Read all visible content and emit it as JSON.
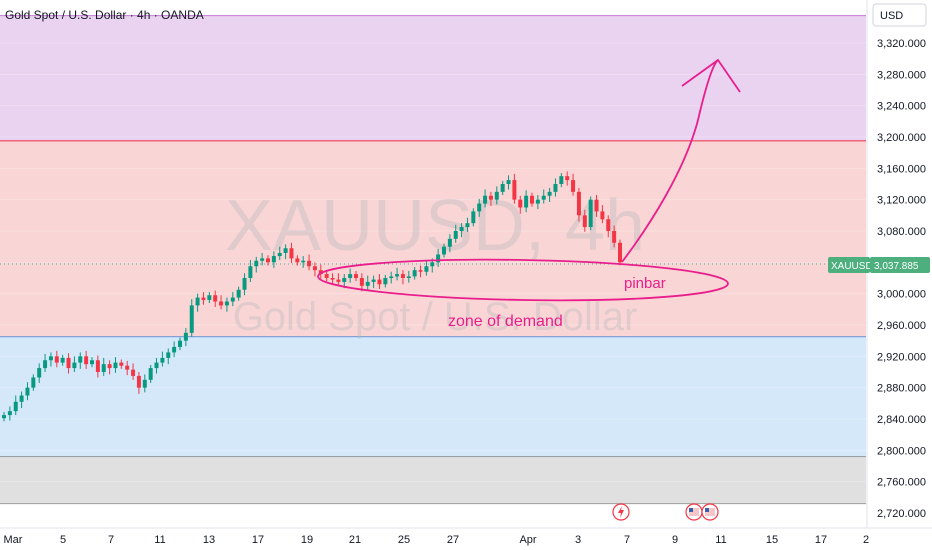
{
  "header": {
    "title": "Gold Spot / U.S. Dollar · 4h · OANDA"
  },
  "currency_button": "USD",
  "watermark": {
    "symbol": "XAUUSD, 4h",
    "name": "Gold Spot / U.S. Dollar"
  },
  "price_badge": {
    "symbol": "XAUUSD",
    "value": "3,037.885"
  },
  "annotations": {
    "zone_label": "zone of demand",
    "pinbar_label": "pinbar"
  },
  "colors": {
    "up": "#089981",
    "down": "#f23645",
    "purple_zone": "#ead3f0",
    "red_zone": "#f9d6d5",
    "blue_zone": "#d5e8fa",
    "gray_zone": "#e0e0e0",
    "annotation": "#e91e8c",
    "badge": "#4caf7d"
  },
  "event_icons": [
    "flash-icon",
    "us-flag-icon",
    "us-flag-icon"
  ],
  "chart_data": {
    "type": "candlestick",
    "ylim": [
      2700,
      3355
    ],
    "y_ticks": [
      2720,
      2760,
      2800,
      2840,
      2880,
      2920,
      2960,
      3000,
      3040,
      3080,
      3120,
      3160,
      3200,
      3240,
      3280,
      3320
    ],
    "y_tick_labels": [
      "2,720.000",
      "2,760.000",
      "2,800.000",
      "2,840.000",
      "2,880.000",
      "2,920.000",
      "2,960.000",
      "3,000.000",
      "3,040.000",
      "3,080.000",
      "3,120.000",
      "3,160.000",
      "3,200.000",
      "3,240.000",
      "3,280.000",
      "3,320.000"
    ],
    "x_labels": [
      "Mar",
      "5",
      "7",
      "11",
      "13",
      "17",
      "19",
      "21",
      "25",
      "27",
      "Apr",
      "3",
      "7",
      "9",
      "11",
      "15",
      "17",
      "2"
    ],
    "zones": [
      {
        "name": "supply-zone",
        "from": 3195,
        "to": 3355
      },
      {
        "name": "mid-zone",
        "from": 2945,
        "to": 3195
      },
      {
        "name": "demand-zone",
        "from": 2792,
        "to": 2945
      },
      {
        "name": "lower-zone",
        "from": 2732,
        "to": 2792
      }
    ],
    "current_price": 3037.885,
    "close_path": [
      2845,
      2850,
      2862,
      2870,
      2880,
      2893,
      2905,
      2915,
      2920,
      2912,
      2918,
      2905,
      2912,
      2920,
      2910,
      2915,
      2900,
      2910,
      2905,
      2912,
      2908,
      2903,
      2895,
      2880,
      2890,
      2905,
      2912,
      2918,
      2925,
      2932,
      2940,
      2950,
      2985,
      2995,
      2992,
      2998,
      2990,
      2985,
      2990,
      2995,
      3005,
      3020,
      3035,
      3042,
      3045,
      3040,
      3048,
      3052,
      3058,
      3045,
      3040,
      3042,
      3035,
      3030,
      3025,
      3020,
      3018,
      3015,
      3020,
      3025,
      3020,
      3010,
      3015,
      3018,
      3012,
      3020,
      3022,
      3025,
      3020,
      3022,
      3030,
      3028,
      3035,
      3040,
      3050,
      3060,
      3070,
      3080,
      3085,
      3090,
      3105,
      3115,
      3125,
      3120,
      3130,
      3140,
      3145,
      3120,
      3110,
      3125,
      3115,
      3120,
      3125,
      3130,
      3140,
      3150,
      3145,
      3130,
      3100,
      3085,
      3120,
      3105,
      3095,
      3080,
      3065,
      3040
    ]
  }
}
